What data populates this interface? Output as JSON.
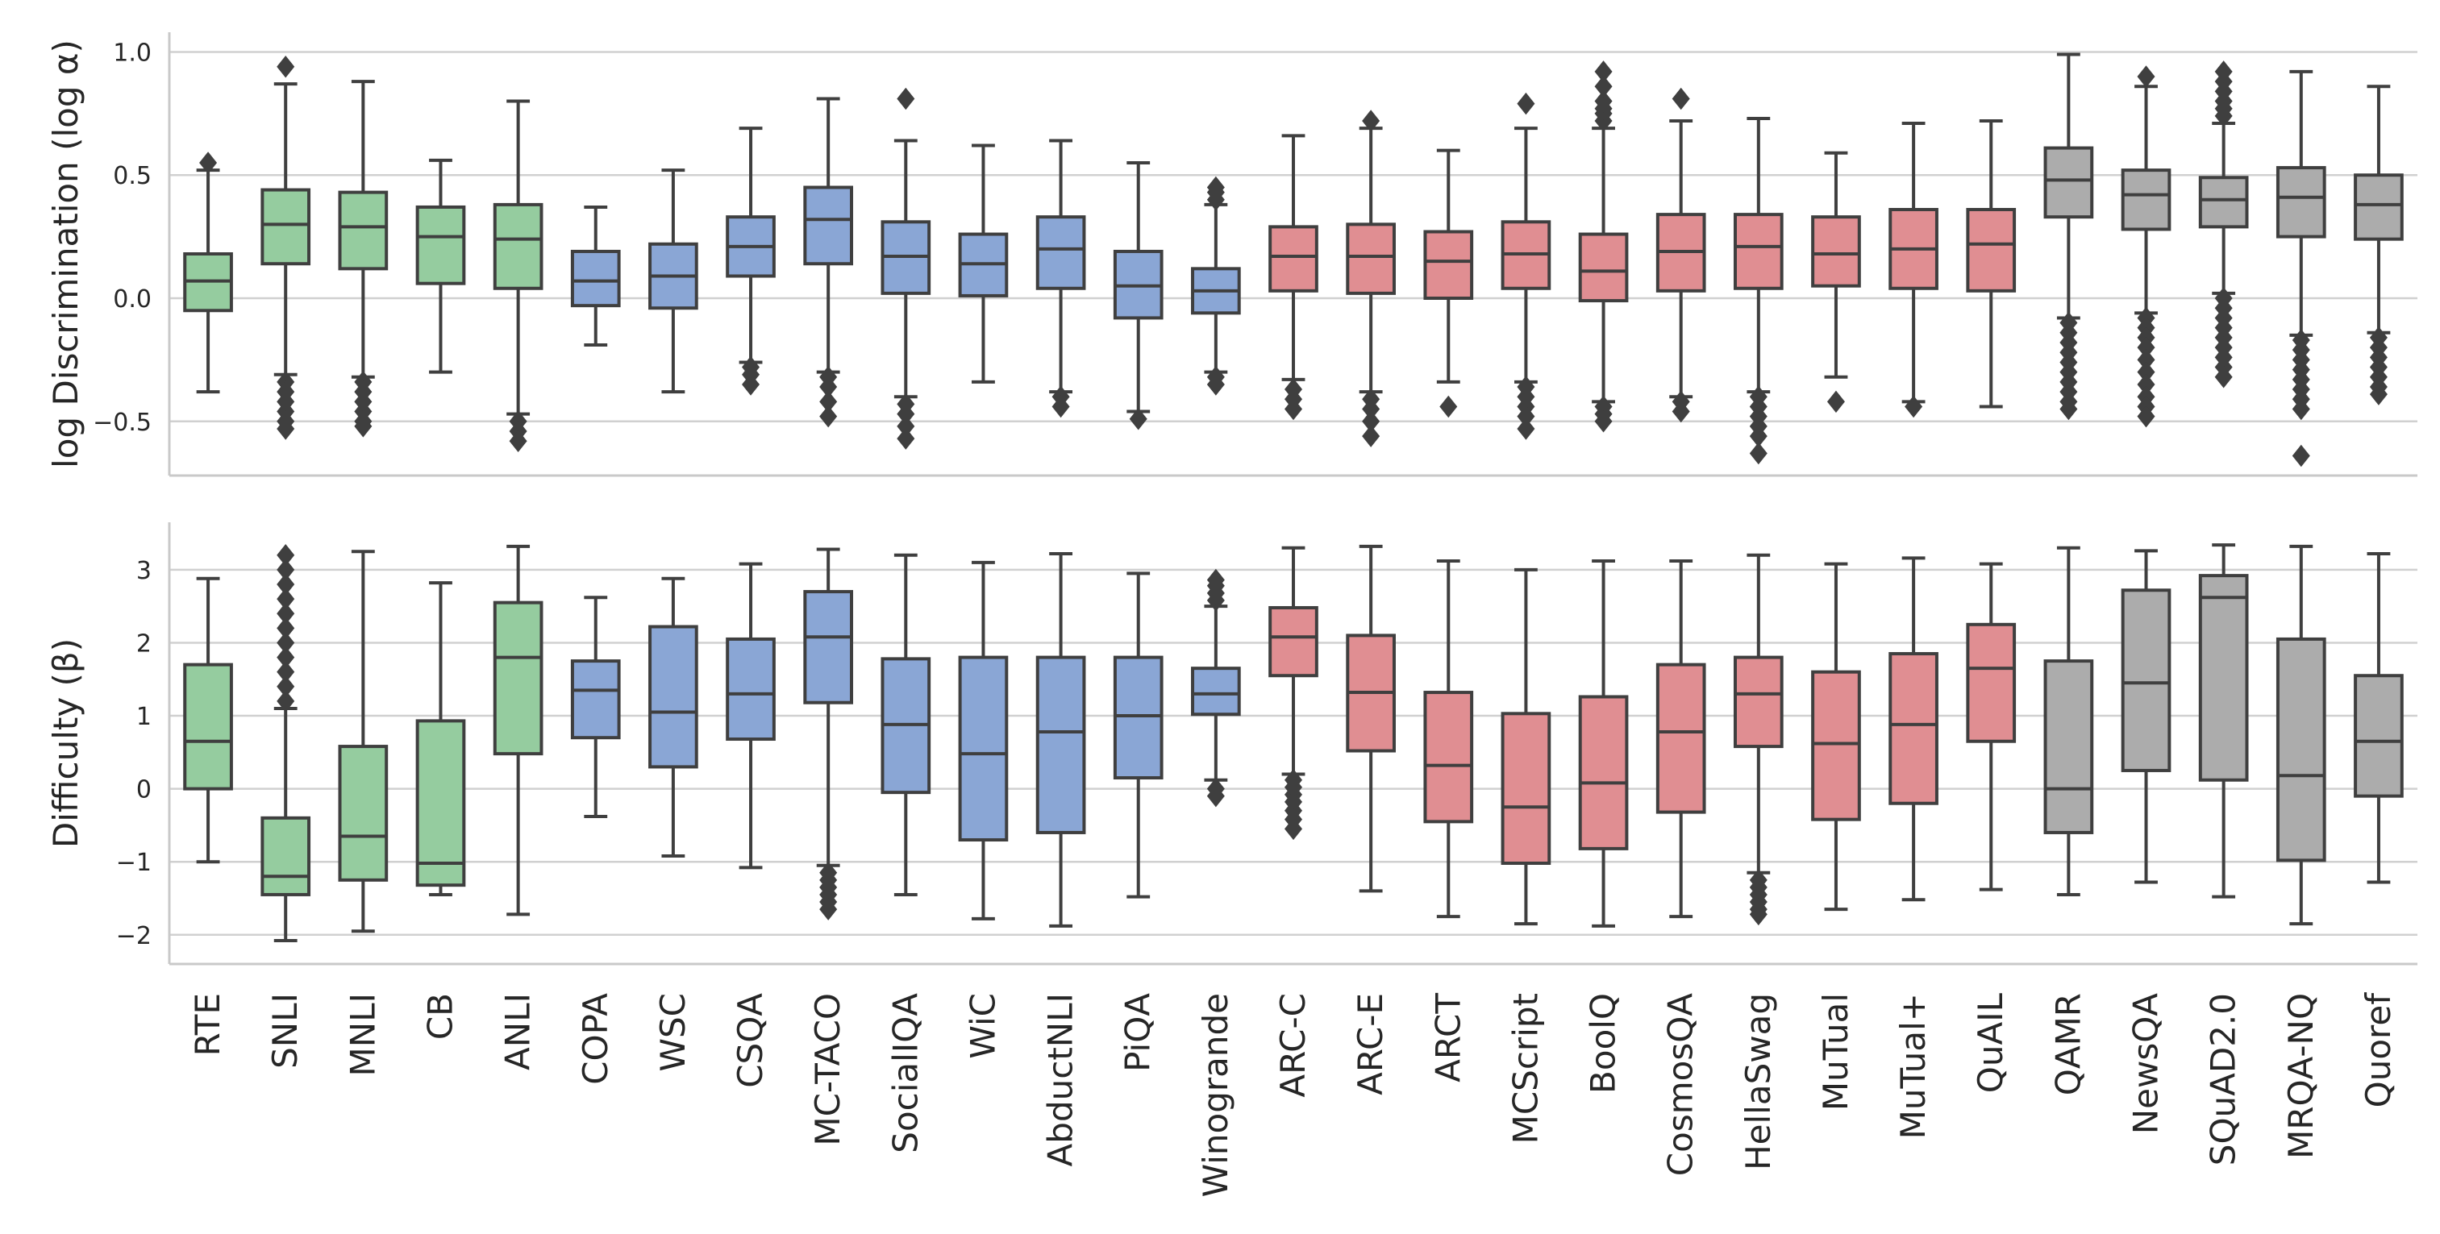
{
  "chart_data": [
    {
      "type": "box",
      "panel": "top",
      "ylabel": "log Discrimination (log α)",
      "ylim": [
        -0.72,
        1.08
      ],
      "yticks": [
        1.0,
        0.5,
        0.0,
        -0.5
      ],
      "ytick_labels": [
        "1.0",
        "0.5",
        "0.0",
        "−0.5"
      ],
      "categories": [
        "RTE",
        "SNLI",
        "MNLI",
        "CB",
        "ANLI",
        "COPA",
        "WSC",
        "CSQA",
        "MC-TACO",
        "SocialIQA",
        "WiC",
        "AbductNLI",
        "PiQA",
        "Winogrande",
        "ARC-C",
        "ARC-E",
        "ARCT",
        "MCScript",
        "BoolQ",
        "CosmosQA",
        "HellaSwag",
        "MuTual",
        "MuTual+",
        "QuAIL",
        "QAMR",
        "NewsQA",
        "SQuAD2.0",
        "MRQA-NQ",
        "Quoref"
      ],
      "boxes": [
        {
          "q1": -0.05,
          "median": 0.07,
          "q3": 0.18,
          "whislo": -0.38,
          "whishi": 0.52,
          "outliers": [
            0.55
          ]
        },
        {
          "q1": 0.14,
          "median": 0.3,
          "q3": 0.44,
          "whislo": -0.31,
          "whishi": 0.87,
          "outliers": [
            0.94,
            -0.34,
            -0.38,
            -0.42,
            -0.46,
            -0.5,
            -0.53
          ]
        },
        {
          "q1": 0.12,
          "median": 0.29,
          "q3": 0.43,
          "whislo": -0.32,
          "whishi": 0.88,
          "outliers": [
            -0.34,
            -0.38,
            -0.42,
            -0.46,
            -0.5,
            -0.52
          ]
        },
        {
          "q1": 0.06,
          "median": 0.25,
          "q3": 0.37,
          "whislo": -0.3,
          "whishi": 0.56,
          "outliers": []
        },
        {
          "q1": 0.04,
          "median": 0.24,
          "q3": 0.38,
          "whislo": -0.47,
          "whishi": 0.8,
          "outliers": [
            -0.5,
            -0.54,
            -0.58
          ]
        },
        {
          "q1": -0.03,
          "median": 0.07,
          "q3": 0.19,
          "whislo": -0.19,
          "whishi": 0.37,
          "outliers": []
        },
        {
          "q1": -0.04,
          "median": 0.09,
          "q3": 0.22,
          "whislo": -0.38,
          "whishi": 0.52,
          "outliers": []
        },
        {
          "q1": 0.09,
          "median": 0.21,
          "q3": 0.33,
          "whislo": -0.26,
          "whishi": 0.69,
          "outliers": [
            -0.28,
            -0.31,
            -0.35
          ]
        },
        {
          "q1": 0.14,
          "median": 0.32,
          "q3": 0.45,
          "whislo": -0.3,
          "whishi": 0.81,
          "outliers": [
            -0.32,
            -0.36,
            -0.42,
            -0.48
          ]
        },
        {
          "q1": 0.02,
          "median": 0.17,
          "q3": 0.31,
          "whislo": -0.4,
          "whishi": 0.64,
          "outliers": [
            0.81,
            -0.43,
            -0.47,
            -0.52,
            -0.57
          ]
        },
        {
          "q1": 0.01,
          "median": 0.14,
          "q3": 0.26,
          "whislo": -0.34,
          "whishi": 0.62,
          "outliers": []
        },
        {
          "q1": 0.04,
          "median": 0.2,
          "q3": 0.33,
          "whislo": -0.38,
          "whishi": 0.64,
          "outliers": [
            -0.4,
            -0.44
          ]
        },
        {
          "q1": -0.08,
          "median": 0.05,
          "q3": 0.19,
          "whislo": -0.46,
          "whishi": 0.55,
          "outliers": [
            -0.49
          ]
        },
        {
          "q1": -0.06,
          "median": 0.03,
          "q3": 0.12,
          "whislo": -0.3,
          "whishi": 0.38,
          "outliers": [
            0.4,
            0.43,
            0.45,
            -0.32,
            -0.35
          ]
        },
        {
          "q1": 0.03,
          "median": 0.17,
          "q3": 0.29,
          "whislo": -0.33,
          "whishi": 0.66,
          "outliers": [
            -0.37,
            -0.41,
            -0.45
          ]
        },
        {
          "q1": 0.02,
          "median": 0.17,
          "q3": 0.3,
          "whislo": -0.38,
          "whishi": 0.69,
          "outliers": [
            0.72,
            -0.41,
            -0.45,
            -0.5,
            -0.56
          ]
        },
        {
          "q1": 0.0,
          "median": 0.15,
          "q3": 0.27,
          "whislo": -0.34,
          "whishi": 0.6,
          "outliers": [
            -0.44
          ]
        },
        {
          "q1": 0.04,
          "median": 0.18,
          "q3": 0.31,
          "whislo": -0.34,
          "whishi": 0.69,
          "outliers": [
            0.79,
            -0.36,
            -0.4,
            -0.44,
            -0.48,
            -0.53
          ]
        },
        {
          "q1": -0.01,
          "median": 0.11,
          "q3": 0.26,
          "whislo": -0.42,
          "whishi": 0.69,
          "outliers": [
            0.72,
            0.75,
            0.77,
            0.8,
            0.86,
            0.92,
            -0.44,
            -0.47,
            -0.5
          ]
        },
        {
          "q1": 0.03,
          "median": 0.19,
          "q3": 0.34,
          "whislo": -0.4,
          "whishi": 0.72,
          "outliers": [
            0.81,
            -0.42,
            -0.46
          ]
        },
        {
          "q1": 0.04,
          "median": 0.21,
          "q3": 0.34,
          "whislo": -0.38,
          "whishi": 0.73,
          "outliers": [
            -0.4,
            -0.44,
            -0.48,
            -0.52,
            -0.56,
            -0.63
          ]
        },
        {
          "q1": 0.05,
          "median": 0.18,
          "q3": 0.33,
          "whislo": -0.32,
          "whishi": 0.59,
          "outliers": [
            -0.42
          ]
        },
        {
          "q1": 0.04,
          "median": 0.2,
          "q3": 0.36,
          "whislo": -0.42,
          "whishi": 0.71,
          "outliers": [
            -0.44
          ]
        },
        {
          "q1": 0.03,
          "median": 0.22,
          "q3": 0.36,
          "whislo": -0.44,
          "whishi": 0.72,
          "outliers": []
        },
        {
          "q1": 0.33,
          "median": 0.48,
          "q3": 0.61,
          "whislo": -0.08,
          "whishi": 0.99,
          "outliers": [
            -0.1,
            -0.14,
            -0.18,
            -0.22,
            -0.26,
            -0.3,
            -0.34,
            -0.38,
            -0.42,
            -0.45
          ]
        },
        {
          "q1": 0.28,
          "median": 0.42,
          "q3": 0.52,
          "whislo": -0.06,
          "whishi": 0.86,
          "outliers": [
            0.9,
            -0.08,
            -0.12,
            -0.16,
            -0.2,
            -0.25,
            -0.3,
            -0.35,
            -0.4,
            -0.44,
            -0.48
          ]
        },
        {
          "q1": 0.29,
          "median": 0.4,
          "q3": 0.49,
          "whislo": 0.02,
          "whishi": 0.71,
          "outliers": [
            0.74,
            0.77,
            0.8,
            0.84,
            0.88,
            0.92,
            0.0,
            -0.04,
            -0.08,
            -0.12,
            -0.16,
            -0.2,
            -0.24,
            -0.28,
            -0.32
          ]
        },
        {
          "q1": 0.25,
          "median": 0.41,
          "q3": 0.53,
          "whislo": -0.15,
          "whishi": 0.92,
          "outliers": [
            -0.17,
            -0.21,
            -0.25,
            -0.29,
            -0.33,
            -0.37,
            -0.41,
            -0.45,
            -0.64
          ]
        },
        {
          "q1": 0.24,
          "median": 0.38,
          "q3": 0.5,
          "whislo": -0.14,
          "whishi": 0.86,
          "outliers": [
            -0.16,
            -0.2,
            -0.24,
            -0.28,
            -0.32,
            -0.36,
            -0.39
          ]
        }
      ]
    },
    {
      "type": "box",
      "panel": "bottom",
      "ylabel": "Difficulty (β)",
      "ylim": [
        -2.4,
        3.65
      ],
      "yticks": [
        3,
        2,
        1,
        0,
        -1,
        -2
      ],
      "ytick_labels": [
        "3",
        "2",
        "1",
        "0",
        "−1",
        "−2"
      ],
      "categories": [
        "RTE",
        "SNLI",
        "MNLI",
        "CB",
        "ANLI",
        "COPA",
        "WSC",
        "CSQA",
        "MC-TACO",
        "SocialIQA",
        "WiC",
        "AbductNLI",
        "PiQA",
        "Winogrande",
        "ARC-C",
        "ARC-E",
        "ARCT",
        "MCScript",
        "BoolQ",
        "CosmosQA",
        "HellaSwag",
        "MuTual",
        "MuTual+",
        "QuAIL",
        "QAMR",
        "NewsQA",
        "SQuAD2.0",
        "MRQA-NQ",
        "Quoref"
      ],
      "boxes": [
        {
          "q1": 0.0,
          "median": 0.65,
          "q3": 1.7,
          "whislo": -1.0,
          "whishi": 2.88,
          "outliers": []
        },
        {
          "q1": -1.45,
          "median": -1.2,
          "q3": -0.4,
          "whislo": -2.08,
          "whishi": 1.1,
          "outliers": [
            1.2,
            1.4,
            1.6,
            1.8,
            2.0,
            2.2,
            2.4,
            2.6,
            2.8,
            3.0,
            3.2
          ]
        },
        {
          "q1": -1.25,
          "median": -0.65,
          "q3": 0.58,
          "whislo": -1.95,
          "whishi": 3.25,
          "outliers": []
        },
        {
          "q1": -1.32,
          "median": -1.02,
          "q3": 0.93,
          "whislo": -1.45,
          "whishi": 2.82,
          "outliers": []
        },
        {
          "q1": 0.48,
          "median": 1.8,
          "q3": 2.55,
          "whislo": -1.72,
          "whishi": 3.32,
          "outliers": []
        },
        {
          "q1": 0.7,
          "median": 1.35,
          "q3": 1.75,
          "whislo": -0.38,
          "whishi": 2.62,
          "outliers": []
        },
        {
          "q1": 0.3,
          "median": 1.05,
          "q3": 2.22,
          "whislo": -0.92,
          "whishi": 2.88,
          "outliers": []
        },
        {
          "q1": 0.68,
          "median": 1.3,
          "q3": 2.05,
          "whislo": -1.08,
          "whishi": 3.08,
          "outliers": []
        },
        {
          "q1": 1.18,
          "median": 2.08,
          "q3": 2.7,
          "whislo": -1.05,
          "whishi": 3.28,
          "outliers": [
            -1.15,
            -1.25,
            -1.35,
            -1.45,
            -1.55,
            -1.65
          ]
        },
        {
          "q1": -0.05,
          "median": 0.88,
          "q3": 1.78,
          "whislo": -1.45,
          "whishi": 3.2,
          "outliers": []
        },
        {
          "q1": -0.7,
          "median": 0.48,
          "q3": 1.8,
          "whislo": -1.78,
          "whishi": 3.1,
          "outliers": []
        },
        {
          "q1": -0.6,
          "median": 0.78,
          "q3": 1.8,
          "whislo": -1.88,
          "whishi": 3.22,
          "outliers": []
        },
        {
          "q1": 0.15,
          "median": 1.0,
          "q3": 1.8,
          "whislo": -1.48,
          "whishi": 2.95,
          "outliers": []
        },
        {
          "q1": 1.02,
          "median": 1.3,
          "q3": 1.65,
          "whislo": 0.12,
          "whishi": 2.5,
          "outliers": [
            2.58,
            2.68,
            2.78,
            2.86,
            0.0,
            -0.1
          ]
        },
        {
          "q1": 1.55,
          "median": 2.08,
          "q3": 2.48,
          "whislo": 0.2,
          "whishi": 3.3,
          "outliers": [
            0.12,
            0.02,
            -0.08,
            -0.18,
            -0.3,
            -0.42,
            -0.55
          ]
        },
        {
          "q1": 0.52,
          "median": 1.32,
          "q3": 2.1,
          "whislo": -1.4,
          "whishi": 3.32,
          "outliers": []
        },
        {
          "q1": -0.45,
          "median": 0.32,
          "q3": 1.32,
          "whislo": -1.75,
          "whishi": 3.12,
          "outliers": []
        },
        {
          "q1": -1.02,
          "median": -0.25,
          "q3": 1.03,
          "whislo": -1.85,
          "whishi": 3.0,
          "outliers": []
        },
        {
          "q1": -0.82,
          "median": 0.08,
          "q3": 1.26,
          "whislo": -1.88,
          "whishi": 3.12,
          "outliers": []
        },
        {
          "q1": -0.32,
          "median": 0.78,
          "q3": 1.7,
          "whislo": -1.75,
          "whishi": 3.12,
          "outliers": []
        },
        {
          "q1": 0.58,
          "median": 1.3,
          "q3": 1.8,
          "whislo": -1.15,
          "whishi": 3.2,
          "outliers": [
            -1.25,
            -1.35,
            -1.45,
            -1.55,
            -1.65,
            -1.72
          ]
        },
        {
          "q1": -0.42,
          "median": 0.62,
          "q3": 1.6,
          "whislo": -1.65,
          "whishi": 3.08,
          "outliers": []
        },
        {
          "q1": -0.2,
          "median": 0.88,
          "q3": 1.85,
          "whislo": -1.52,
          "whishi": 3.16,
          "outliers": []
        },
        {
          "q1": 0.65,
          "median": 1.65,
          "q3": 2.25,
          "whislo": -1.38,
          "whishi": 3.08,
          "outliers": []
        },
        {
          "q1": -0.6,
          "median": 0.0,
          "q3": 1.75,
          "whislo": -1.45,
          "whishi": 3.3,
          "outliers": []
        },
        {
          "q1": 0.25,
          "median": 1.45,
          "q3": 2.72,
          "whislo": -1.28,
          "whishi": 3.26,
          "outliers": []
        },
        {
          "q1": 0.12,
          "median": 2.62,
          "q3": 2.92,
          "whislo": -1.48,
          "whishi": 3.34,
          "outliers": []
        },
        {
          "q1": -0.98,
          "median": 0.18,
          "q3": 2.05,
          "whislo": -1.85,
          "whishi": 3.32,
          "outliers": []
        },
        {
          "q1": -0.1,
          "median": 0.65,
          "q3": 1.55,
          "whislo": -1.28,
          "whishi": 3.22,
          "outliers": []
        }
      ]
    }
  ],
  "palette": {
    "green": "#95cc9f",
    "blue": "#8aa6d5",
    "red": "#e08e92",
    "gray": "#acacac"
  },
  "category_colors": [
    "green",
    "green",
    "green",
    "green",
    "green",
    "blue",
    "blue",
    "blue",
    "blue",
    "blue",
    "blue",
    "blue",
    "blue",
    "blue",
    "red",
    "red",
    "red",
    "red",
    "red",
    "red",
    "red",
    "red",
    "red",
    "red",
    "gray",
    "gray",
    "gray",
    "gray",
    "gray"
  ]
}
